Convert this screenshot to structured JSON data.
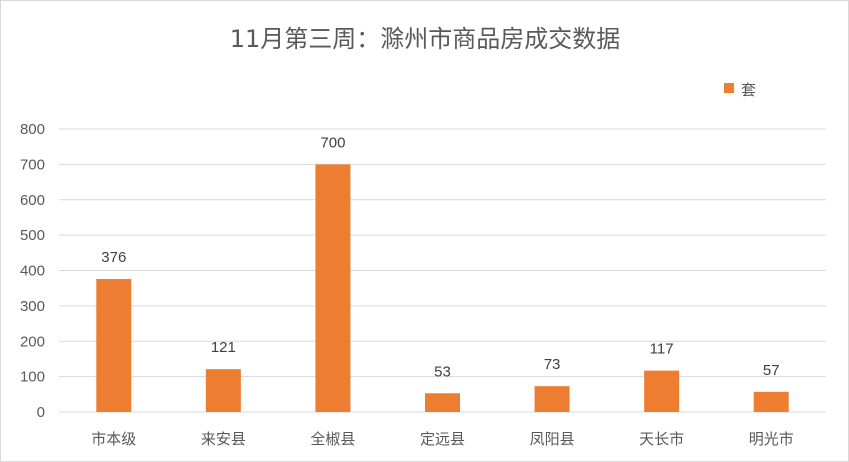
{
  "chart_data": {
    "type": "bar",
    "title": "11月第三周：滁州市商品房成交数据",
    "categories": [
      "市本级",
      "来安县",
      "全椒县",
      "定远县",
      "凤阳县",
      "天长市",
      "明光市"
    ],
    "series": [
      {
        "name": "套",
        "values": [
          376,
          121,
          700,
          53,
          73,
          117,
          57
        ],
        "color": "#ED7D31"
      }
    ],
    "ylim": [
      0,
      800
    ],
    "yticks": [
      0,
      100,
      200,
      300,
      400,
      500,
      600,
      700,
      800
    ],
    "grid": true,
    "legend": "top-right",
    "data_labels": true
  }
}
